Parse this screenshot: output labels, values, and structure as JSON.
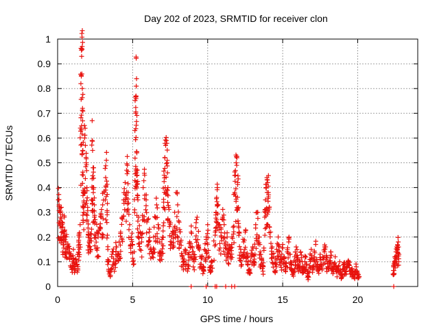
{
  "chart_data": {
    "type": "scatter",
    "title": "Day 202 of 2023, SRMTID for receiver clon",
    "xlabel": "GPS time / hours",
    "ylabel": "SRMTID / TECUs",
    "xlim": [
      0,
      24
    ],
    "ylim": [
      0,
      1
    ],
    "grid": true,
    "marker": "+",
    "color": "#e8120e",
    "xticks": [
      0,
      5,
      10,
      15,
      20
    ],
    "xtick_labels": [
      "0",
      "5",
      "10",
      "15",
      "20"
    ],
    "yticks": [
      0,
      0.1,
      0.2,
      0.3,
      0.4,
      0.5,
      0.6,
      0.7,
      0.8,
      0.9,
      1
    ],
    "ytick_labels": [
      "0",
      "0.1",
      "0.2",
      "0.3",
      "0.4",
      "0.5",
      "0.6",
      "0.7",
      "0.8",
      "0.9",
      "1"
    ],
    "series": [
      {
        "name": "SRMTID",
        "points": [
          [
            0.05,
            0.35
          ],
          [
            0.1,
            0.33
          ],
          [
            0.15,
            0.3
          ],
          [
            0.2,
            0.28
          ],
          [
            0.25,
            0.32
          ],
          [
            0.3,
            0.26
          ],
          [
            0.35,
            0.24
          ],
          [
            0.4,
            0.22
          ],
          [
            0.45,
            0.28
          ],
          [
            0.5,
            0.2
          ],
          [
            0.55,
            0.18
          ],
          [
            0.6,
            0.21
          ],
          [
            0.7,
            0.16
          ],
          [
            0.8,
            0.14
          ],
          [
            0.9,
            0.12
          ],
          [
            1.0,
            0.1
          ],
          [
            1.05,
            0.15
          ],
          [
            1.1,
            0.08
          ],
          [
            1.2,
            0.11
          ],
          [
            1.3,
            0.09
          ],
          [
            1.35,
            0.13
          ],
          [
            1.4,
            0.18
          ],
          [
            1.45,
            0.2
          ],
          [
            1.5,
            0.25
          ],
          [
            1.55,
            0.82
          ],
          [
            1.58,
            0.85
          ],
          [
            1.6,
            0.93
          ],
          [
            1.62,
            0.96
          ],
          [
            1.64,
            0.97
          ],
          [
            1.66,
            0.72
          ],
          [
            1.68,
            0.55
          ],
          [
            1.7,
            0.45
          ],
          [
            1.72,
            0.38
          ],
          [
            1.75,
            0.3
          ],
          [
            1.8,
            0.6
          ],
          [
            1.85,
            0.57
          ],
          [
            1.9,
            0.5
          ],
          [
            1.95,
            0.4
          ],
          [
            2.0,
            0.32
          ],
          [
            2.05,
            0.22
          ],
          [
            2.1,
            0.18
          ],
          [
            2.2,
            0.15
          ],
          [
            2.25,
            0.35
          ],
          [
            2.3,
            0.59
          ],
          [
            2.33,
            0.55
          ],
          [
            2.36,
            0.48
          ],
          [
            2.4,
            0.4
          ],
          [
            2.45,
            0.33
          ],
          [
            2.5,
            0.27
          ],
          [
            2.6,
            0.22
          ],
          [
            2.7,
            0.2
          ],
          [
            2.8,
            0.24
          ],
          [
            2.9,
            0.28
          ],
          [
            3.0,
            0.33
          ],
          [
            3.1,
            0.38
          ],
          [
            3.2,
            0.44
          ],
          [
            3.25,
            0.51
          ],
          [
            3.3,
            0.3
          ],
          [
            3.35,
            0.15
          ],
          [
            3.4,
            0.1
          ],
          [
            3.5,
            0.06
          ],
          [
            3.6,
            0.12
          ],
          [
            3.7,
            0.14
          ],
          [
            3.8,
            0.09
          ],
          [
            3.9,
            0.16
          ],
          [
            4.0,
            0.13
          ],
          [
            4.1,
            0.18
          ],
          [
            4.2,
            0.22
          ],
          [
            4.3,
            0.28
          ],
          [
            4.4,
            0.35
          ],
          [
            4.5,
            0.42
          ],
          [
            4.6,
            0.47
          ],
          [
            4.65,
            0.49
          ],
          [
            4.7,
            0.38
          ],
          [
            4.8,
            0.25
          ],
          [
            4.9,
            0.2
          ],
          [
            5.0,
            0.17
          ],
          [
            5.1,
            0.14
          ],
          [
            5.15,
            0.63
          ],
          [
            5.2,
            0.7
          ],
          [
            5.22,
            0.77
          ],
          [
            5.24,
            0.81
          ],
          [
            5.26,
            0.84
          ],
          [
            5.28,
            0.54
          ],
          [
            5.3,
            0.45
          ],
          [
            5.35,
            0.35
          ],
          [
            5.4,
            0.28
          ],
          [
            5.5,
            0.22
          ],
          [
            5.6,
            0.18
          ],
          [
            5.7,
            0.4
          ],
          [
            5.8,
            0.45
          ],
          [
            5.9,
            0.35
          ],
          [
            6.0,
            0.27
          ],
          [
            6.1,
            0.22
          ],
          [
            6.2,
            0.15
          ],
          [
            6.3,
            0.12
          ],
          [
            6.4,
            0.2
          ],
          [
            6.5,
            0.28
          ],
          [
            6.6,
            0.33
          ],
          [
            6.7,
            0.25
          ],
          [
            6.8,
            0.18
          ],
          [
            6.9,
            0.14
          ],
          [
            7.0,
            0.2
          ],
          [
            7.05,
            0.32
          ],
          [
            7.1,
            0.45
          ],
          [
            7.15,
            0.52
          ],
          [
            7.2,
            0.57
          ],
          [
            7.25,
            0.59
          ],
          [
            7.3,
            0.5
          ],
          [
            7.35,
            0.4
          ],
          [
            7.4,
            0.32
          ],
          [
            7.5,
            0.25
          ],
          [
            7.6,
            0.18
          ],
          [
            7.7,
            0.22
          ],
          [
            7.8,
            0.3
          ],
          [
            7.9,
            0.38
          ],
          [
            8.0,
            0.33
          ],
          [
            8.1,
            0.26
          ],
          [
            8.2,
            0.18
          ],
          [
            8.3,
            0.12
          ],
          [
            8.4,
            0.1
          ],
          [
            8.5,
            0.15
          ],
          [
            8.6,
            0.09
          ],
          [
            8.7,
            0.13
          ],
          [
            8.8,
            0.18
          ],
          [
            8.9,
            0.22
          ],
          [
            9.0,
            0.14
          ],
          [
            9.1,
            0.11
          ],
          [
            9.2,
            0.19
          ],
          [
            9.3,
            0.28
          ],
          [
            9.4,
            0.16
          ],
          [
            9.5,
            0.09
          ],
          [
            9.6,
            0.12
          ],
          [
            9.7,
            0.07
          ],
          [
            9.8,
            0.15
          ],
          [
            9.9,
            0.2
          ],
          [
            10.0,
            0.25
          ],
          [
            10.1,
            0.12
          ],
          [
            10.2,
            0.08
          ],
          [
            10.3,
            0.1
          ],
          [
            10.5,
            0.22
          ],
          [
            10.55,
            0.3
          ],
          [
            10.6,
            0.36
          ],
          [
            10.65,
            0.4
          ],
          [
            10.7,
            0.33
          ],
          [
            10.8,
            0.25
          ],
          [
            10.9,
            0.2
          ],
          [
            11.0,
            0.28
          ],
          [
            11.1,
            0.25
          ],
          [
            11.2,
            0.18
          ],
          [
            11.3,
            0.2
          ],
          [
            11.4,
            0.15
          ],
          [
            11.5,
            0.13
          ],
          [
            11.6,
            0.17
          ],
          [
            11.7,
            0.24
          ],
          [
            11.8,
            0.38
          ],
          [
            11.85,
            0.45
          ],
          [
            11.9,
            0.5
          ],
          [
            11.95,
            0.52
          ],
          [
            12.0,
            0.42
          ],
          [
            12.05,
            0.32
          ],
          [
            12.1,
            0.22
          ],
          [
            12.2,
            0.15
          ],
          [
            12.3,
            0.12
          ],
          [
            12.4,
            0.18
          ],
          [
            12.5,
            0.22
          ],
          [
            12.6,
            0.13
          ],
          [
            12.7,
            0.1
          ],
          [
            12.8,
            0.07
          ],
          [
            12.9,
            0.12
          ],
          [
            13.0,
            0.16
          ],
          [
            13.1,
            0.09
          ],
          [
            13.2,
            0.25
          ],
          [
            13.3,
            0.3
          ],
          [
            13.4,
            0.2
          ],
          [
            13.5,
            0.14
          ],
          [
            13.6,
            0.11
          ],
          [
            13.7,
            0.08
          ],
          [
            13.8,
            0.28
          ],
          [
            13.85,
            0.35
          ],
          [
            13.9,
            0.4
          ],
          [
            13.95,
            0.44
          ],
          [
            14.0,
            0.42
          ],
          [
            14.05,
            0.38
          ],
          [
            14.1,
            0.32
          ],
          [
            14.2,
            0.22
          ],
          [
            14.3,
            0.16
          ],
          [
            14.4,
            0.12
          ],
          [
            14.5,
            0.09
          ],
          [
            14.6,
            0.15
          ],
          [
            14.7,
            0.2
          ],
          [
            14.8,
            0.14
          ],
          [
            14.9,
            0.1
          ],
          [
            15.0,
            0.17
          ],
          [
            15.1,
            0.12
          ],
          [
            15.2,
            0.08
          ],
          [
            15.3,
            0.14
          ],
          [
            15.4,
            0.18
          ],
          [
            15.5,
            0.13
          ],
          [
            15.6,
            0.09
          ],
          [
            15.7,
            0.05
          ],
          [
            15.8,
            0.12
          ],
          [
            15.9,
            0.16
          ],
          [
            16.0,
            0.11
          ],
          [
            16.1,
            0.08
          ],
          [
            16.2,
            0.14
          ],
          [
            16.3,
            0.1
          ],
          [
            16.4,
            0.06
          ],
          [
            16.5,
            0.12
          ],
          [
            16.6,
            0.09
          ],
          [
            16.7,
            0.04
          ],
          [
            16.8,
            0.11
          ],
          [
            16.9,
            0.15
          ],
          [
            17.0,
            0.08
          ],
          [
            17.1,
            0.12
          ],
          [
            17.2,
            0.17
          ],
          [
            17.3,
            0.1
          ],
          [
            17.4,
            0.07
          ],
          [
            17.5,
            0.13
          ],
          [
            17.6,
            0.09
          ],
          [
            17.7,
            0.11
          ],
          [
            17.8,
            0.16
          ],
          [
            17.9,
            0.12
          ],
          [
            18.0,
            0.08
          ],
          [
            18.1,
            0.1
          ],
          [
            18.2,
            0.14
          ],
          [
            18.3,
            0.07
          ],
          [
            18.4,
            0.09
          ],
          [
            18.5,
            0.12
          ],
          [
            18.6,
            0.06
          ],
          [
            18.7,
            0.08
          ],
          [
            18.8,
            0.1
          ],
          [
            18.9,
            0.05
          ],
          [
            19.0,
            0.07
          ],
          [
            19.1,
            0.09
          ],
          [
            19.2,
            0.06
          ],
          [
            19.3,
            0.08
          ],
          [
            19.4,
            0.1
          ],
          [
            19.5,
            0.05
          ],
          [
            19.6,
            0.07
          ],
          [
            19.7,
            0.04
          ],
          [
            19.8,
            0.06
          ],
          [
            19.9,
            0.08
          ],
          [
            20.0,
            0.05
          ],
          [
            20.1,
            0.04
          ],
          [
            22.35,
            0.05
          ],
          [
            22.4,
            0.08
          ],
          [
            22.45,
            0.1
          ],
          [
            22.5,
            0.12
          ],
          [
            22.55,
            0.14
          ],
          [
            22.6,
            0.16
          ],
          [
            22.65,
            0.15
          ],
          [
            22.7,
            0.18
          ],
          [
            22.75,
            0.13
          ]
        ]
      }
    ],
    "zero_points": [
      8.9,
      9.9,
      10.5,
      10.6,
      11.2,
      11.6,
      11.8,
      22.4
    ]
  }
}
